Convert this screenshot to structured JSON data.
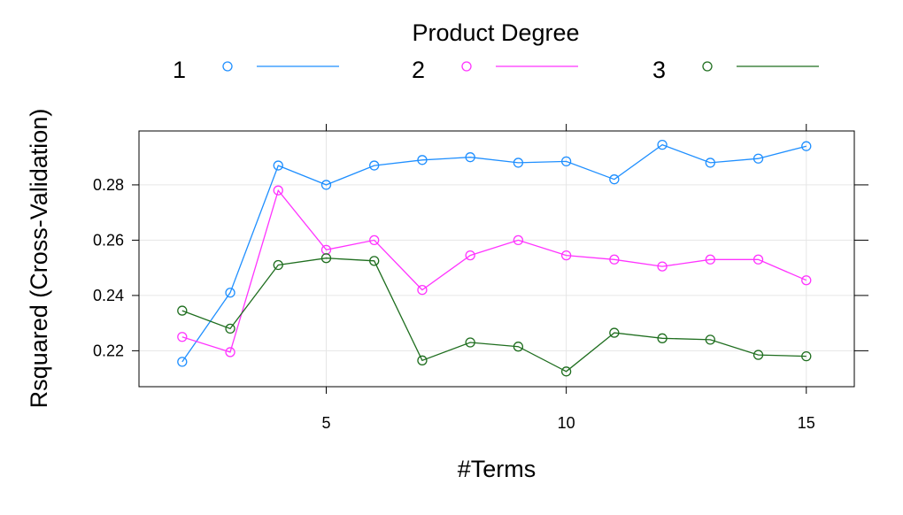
{
  "legend": {
    "title": "Product Degree"
  },
  "chart_data": {
    "type": "line",
    "title": "",
    "xlabel": "#Terms",
    "ylabel": "Rsquared (Cross-Validation)",
    "xlim": [
      1.1,
      16.0
    ],
    "ylim": [
      0.207,
      0.2995
    ],
    "xticks": [
      5,
      10,
      15
    ],
    "yticks": [
      0.22,
      0.24,
      0.26,
      0.28
    ],
    "grid": true,
    "legend_position": "top",
    "x": [
      2,
      3,
      4,
      5,
      6,
      7,
      8,
      9,
      10,
      11,
      12,
      13,
      14,
      15
    ],
    "series": [
      {
        "name": "1",
        "color": "#1f8fff",
        "values": [
          0.216,
          0.241,
          0.287,
          0.28,
          0.287,
          0.289,
          0.29,
          0.288,
          0.2885,
          0.282,
          0.2945,
          0.288,
          0.2895,
          0.294
        ]
      },
      {
        "name": "2",
        "color": "#ff33ff",
        "values": [
          0.225,
          0.2195,
          0.278,
          0.2565,
          0.26,
          0.242,
          0.2545,
          0.26,
          0.2545,
          0.253,
          0.2505,
          0.253,
          0.253,
          0.2455
        ]
      },
      {
        "name": "3",
        "color": "#1f6e1f",
        "values": [
          0.2345,
          0.228,
          0.251,
          0.2535,
          0.2525,
          0.2165,
          0.223,
          0.2215,
          0.2125,
          0.2265,
          0.2245,
          0.224,
          0.2185,
          0.218
        ]
      }
    ]
  }
}
